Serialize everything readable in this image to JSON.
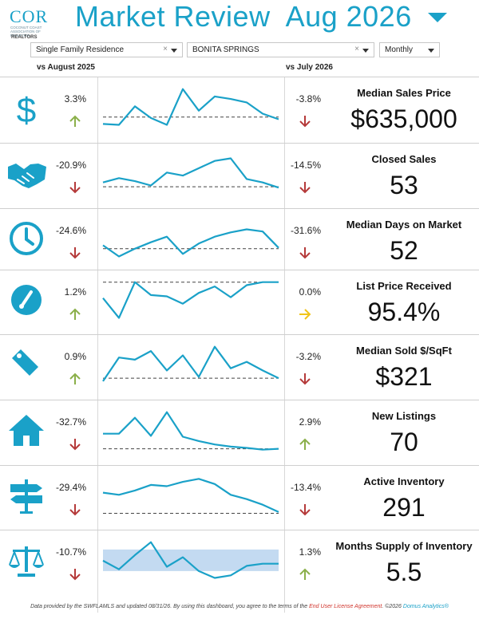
{
  "header": {
    "logo_text": "COR",
    "logo_subtext": "COCONUT COAST ASSOCIATION OF REALTORS",
    "logo_realtors": "REALTORS",
    "title": "Market Review  Aug 2026"
  },
  "filters": {
    "property_type": "Single Family Residence",
    "city": "BONITA SPRINGS",
    "period": "Monthly"
  },
  "columns": {
    "left": "vs August 2025",
    "right": "vs July 2026"
  },
  "colors": {
    "accent": "#1aa1c8",
    "up": "#8bb04a",
    "down": "#b53a3a",
    "flat": "#f0c419",
    "band": "#b9d3ee"
  },
  "metrics": [
    {
      "label": "Median Sales Price",
      "value": "$635,000",
      "yoy": "3.3%",
      "yoy_dir": "up",
      "mom": "-3.8%",
      "mom_dir": "down",
      "icon": "dollar-icon",
      "series": [
        0.86,
        0.88,
        0.45,
        0.72,
        0.88,
        0.05,
        0.55,
        0.22,
        0.28,
        0.36,
        0.62,
        0.75
      ],
      "baseline": 0.7
    },
    {
      "label": "Closed Sales",
      "value": "53",
      "yoy": "-20.9%",
      "yoy_dir": "down",
      "mom": "-14.5%",
      "mom_dir": "down",
      "icon": "handshake-icon",
      "series": [
        0.68,
        0.58,
        0.65,
        0.75,
        0.45,
        0.52,
        0.35,
        0.18,
        0.12,
        0.6,
        0.68,
        0.8
      ],
      "baseline": 0.78
    },
    {
      "label": "Median Days on Market",
      "value": "52",
      "yoy": "-24.6%",
      "yoy_dir": "down",
      "mom": "-31.6%",
      "mom_dir": "down",
      "icon": "clock-icon",
      "series": [
        0.62,
        0.88,
        0.7,
        0.55,
        0.42,
        0.82,
        0.58,
        0.42,
        0.32,
        0.25,
        0.3,
        0.68
      ],
      "baseline": 0.7
    },
    {
      "label": "List Price Received",
      "value": "95.4%",
      "yoy": "1.2%",
      "yoy_dir": "up",
      "mom": "0.0%",
      "mom_dir": "flat",
      "icon": "gauge-icon",
      "series": [
        0.42,
        0.88,
        0.05,
        0.35,
        0.38,
        0.55,
        0.3,
        0.15,
        0.4,
        0.12,
        0.05,
        0.05
      ],
      "baseline": 0.05
    },
    {
      "label": "Median Sold $/SqFt",
      "value": "$321",
      "yoy": "0.9%",
      "yoy_dir": "up",
      "mom": "-3.2%",
      "mom_dir": "down",
      "icon": "price-tag-icon",
      "series": [
        0.85,
        0.3,
        0.35,
        0.15,
        0.6,
        0.25,
        0.75,
        0.05,
        0.55,
        0.4,
        0.6,
        0.78
      ],
      "baseline": 0.78
    },
    {
      "label": "New Listings",
      "value": "70",
      "yoy": "-32.7%",
      "yoy_dir": "down",
      "mom": "2.9%",
      "mom_dir": "up",
      "icon": "house-icon",
      "series": [
        0.55,
        0.55,
        0.18,
        0.6,
        0.05,
        0.62,
        0.72,
        0.8,
        0.85,
        0.88,
        0.92,
        0.9
      ],
      "baseline": 0.9
    },
    {
      "label": "Active Inventory",
      "value": "291",
      "yoy": "-29.4%",
      "yoy_dir": "down",
      "mom": "-13.4%",
      "mom_dir": "down",
      "icon": "signpost-icon",
      "series": [
        0.4,
        0.45,
        0.35,
        0.22,
        0.25,
        0.15,
        0.08,
        0.2,
        0.45,
        0.55,
        0.68,
        0.85
      ],
      "baseline": 0.88
    },
    {
      "label": "Months Supply of Inventory",
      "value": "5.5",
      "yoy": "-10.7%",
      "yoy_dir": "down",
      "mom": "1.3%",
      "mom_dir": "up",
      "icon": "scales-icon",
      "series": [
        0.48,
        0.68,
        0.35,
        0.05,
        0.62,
        0.4,
        0.72,
        0.88,
        0.82,
        0.6,
        0.55,
        0.55
      ],
      "baseline": null,
      "band": [
        0.22,
        0.72
      ]
    }
  ],
  "footer": {
    "text1": "Data provided by the SWFLAMLS and updated 08/31/26.  By using this dashboard, you agree to the terms of the ",
    "link": "End User License Agreement",
    "text2": ".  ©2026 ",
    "domus": "Domus Analytics®"
  }
}
